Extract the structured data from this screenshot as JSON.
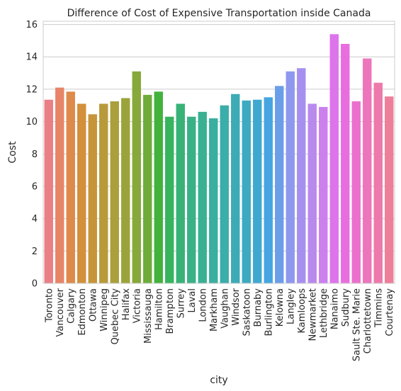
{
  "chart_data": {
    "type": "bar",
    "title": "Difference of Cost of Expensive Transportation inside Canada",
    "xlabel": "city",
    "ylabel": "Cost",
    "ylim": [
      0,
      16.2
    ],
    "yticks": [
      0,
      2,
      4,
      6,
      8,
      10,
      12,
      14,
      16
    ],
    "grid": "horizontal",
    "categories": [
      "Toronto",
      "Vancouver",
      "Calgary",
      "Edmonton",
      "Ottawa",
      "Winnipeg",
      "Quebec City",
      "Halifax",
      "Victoria",
      "Mississauga",
      "Hamilton",
      "Brampton",
      "Surrey",
      "Laval",
      "London",
      "Markham",
      "Vaughan",
      "Windsor",
      "Saskatoon",
      "Burnaby",
      "Burlington",
      "Kelowna",
      "Langley",
      "Kamloops",
      "Newmarket",
      "Lethbridge",
      "Nanaimo",
      "Sudbury",
      "Sault Ste. Marie",
      "Charlottetown",
      "Timmins",
      "Courtenay"
    ],
    "values": [
      11.35,
      12.1,
      11.85,
      11.1,
      10.45,
      11.1,
      11.25,
      11.45,
      13.1,
      11.65,
      11.85,
      10.3,
      11.1,
      10.3,
      10.6,
      10.2,
      11.0,
      11.7,
      11.3,
      11.35,
      11.5,
      12.2,
      13.1,
      13.3,
      11.1,
      10.9,
      15.4,
      14.8,
      11.25,
      13.9,
      12.4,
      11.55
    ],
    "colors": [
      "#ea7f86",
      "#e88468",
      "#de8a4c",
      "#d38f3b",
      "#c6953a",
      "#b89a3a",
      "#aa9f3a",
      "#9ba43a",
      "#87a83a",
      "#6eac3a",
      "#42b23c",
      "#37b45e",
      "#38b276",
      "#39b186",
      "#3ab093",
      "#3aae9f",
      "#3badaa",
      "#3cabb6",
      "#3daac2",
      "#3fa8d0",
      "#46a5e1",
      "#6b9ee9",
      "#8e98ee",
      "#a690ef",
      "#b98aee",
      "#cb80ee",
      "#dd74ec",
      "#e86ee0",
      "#eb70cc",
      "#ec75bb",
      "#ed7aaa",
      "#ee7e9a"
    ]
  }
}
